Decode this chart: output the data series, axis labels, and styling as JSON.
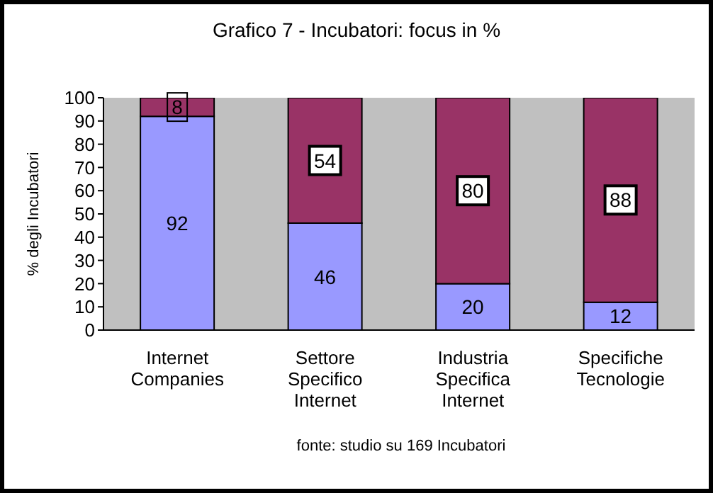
{
  "chart_data": {
    "type": "bar",
    "title": "Grafico 7 - Incubatori: focus in %",
    "ylabel": "% degli Incubatori",
    "categories": [
      "Internet\nCompanies",
      "Settore\nSpecifico\nInternet",
      "Industria\nSpecifica\nInternet",
      "Specifiche\nTecnologie"
    ],
    "series": [
      {
        "color": "#9999ff",
        "values": [
          92,
          46,
          20,
          12
        ]
      },
      {
        "color": "#993366",
        "values": [
          8,
          54,
          80,
          88
        ]
      }
    ],
    "stacked": true,
    "ylim": [
      0,
      100
    ],
    "yticks": [
      0,
      10,
      20,
      30,
      40,
      50,
      60,
      70,
      80,
      90,
      100
    ],
    "grid": false,
    "legend": false,
    "data_labels": true,
    "annotations": [
      "fonte: studio su 169 Incubatori"
    ]
  }
}
